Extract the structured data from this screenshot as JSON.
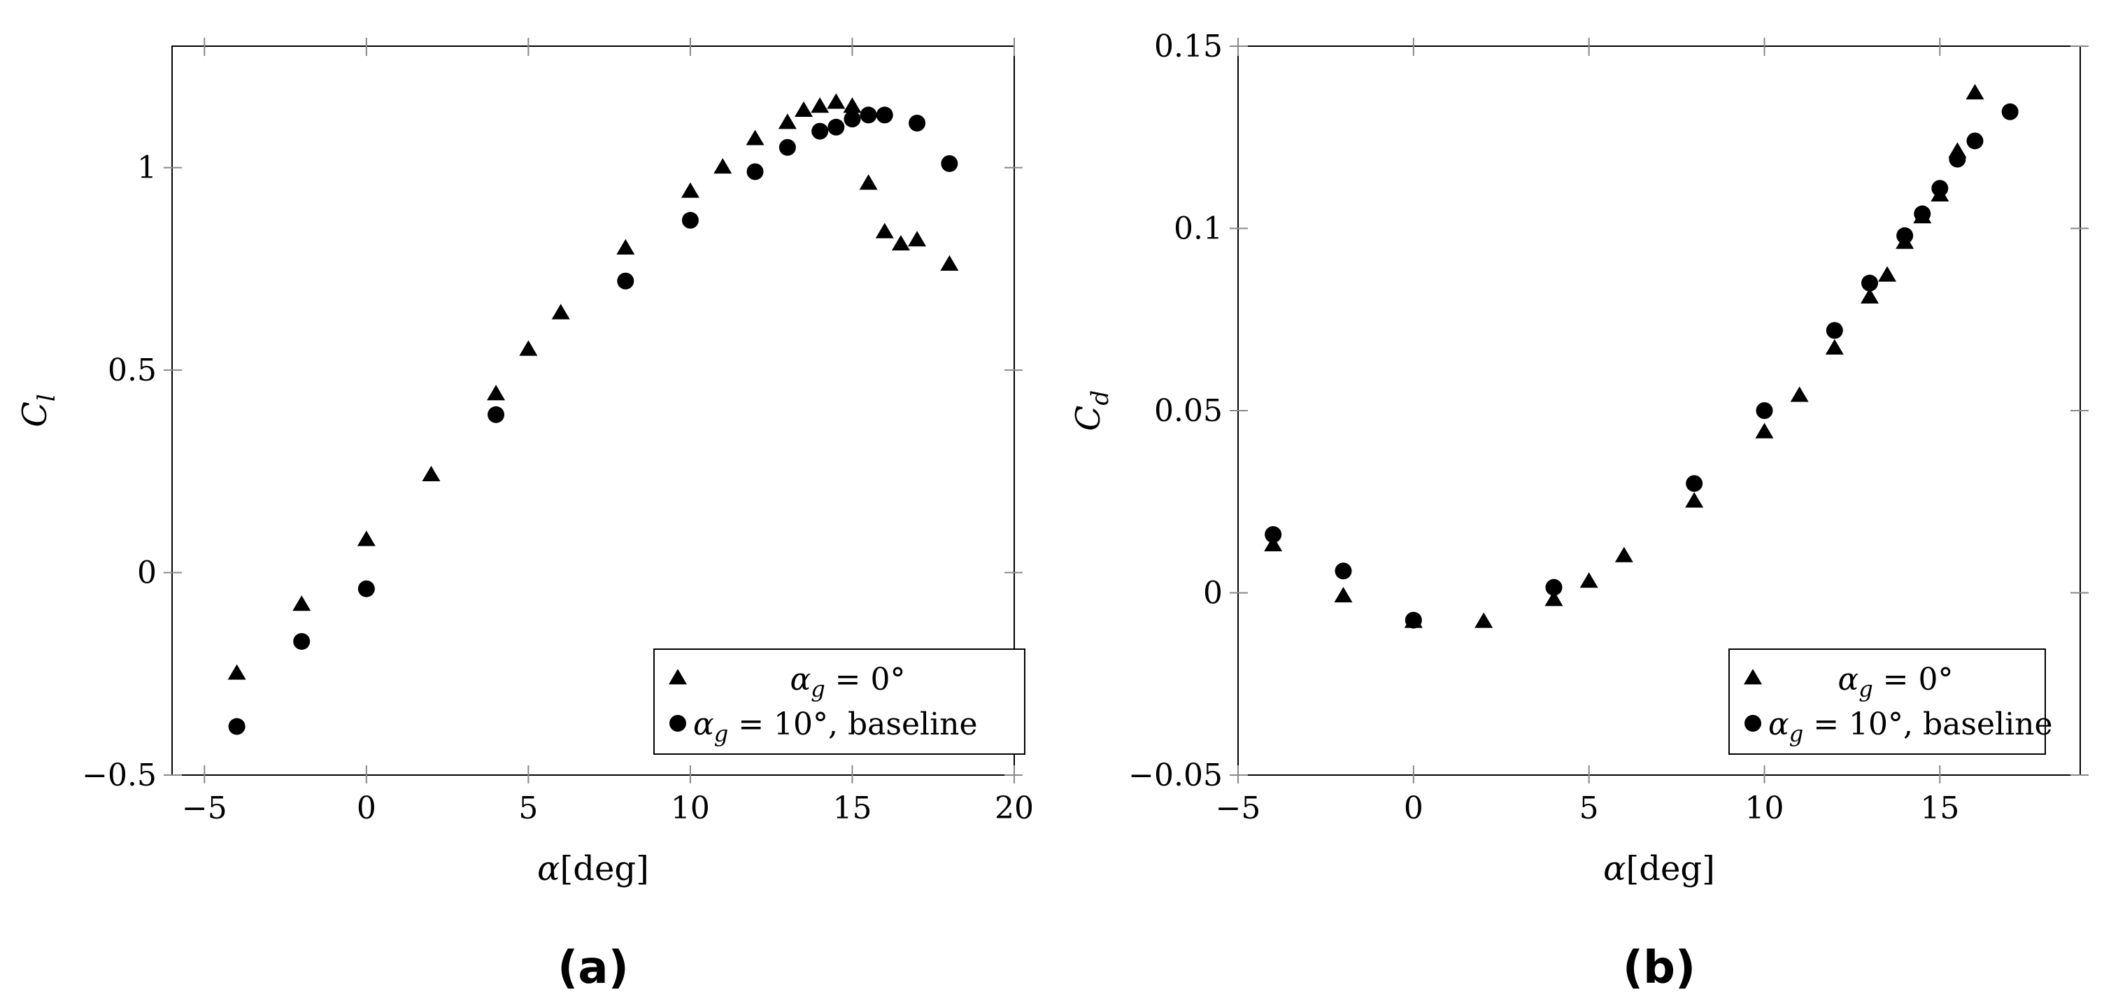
{
  "chart_data": [
    {
      "type": "scatter",
      "panel_label": "(a)",
      "xlabel_symbol": "α",
      "xlabel_unit": "[deg]",
      "ylabel_symbol": "C",
      "ylabel_sub": "l",
      "xlim": [
        -6,
        20
      ],
      "ylim": [
        -0.5,
        1.3
      ],
      "xticks": [
        -5,
        0,
        5,
        10,
        15,
        20
      ],
      "xtick_labels": [
        "−5",
        "0",
        "5",
        "10",
        "15",
        "20"
      ],
      "yticks": [
        -0.5,
        0,
        0.5,
        1
      ],
      "ytick_labels": [
        "−0.5",
        "0",
        "0.5",
        "1"
      ],
      "legend_position": "bottom-right",
      "series": [
        {
          "name": "α_g = 0°",
          "legend_var": "α",
          "legend_sub": "g",
          "legend_rest": " = 0°",
          "marker": "triangle",
          "x": [
            -4,
            -2,
            0,
            2,
            4,
            5,
            6,
            8,
            10,
            11,
            12,
            13,
            13.5,
            14,
            14.5,
            15,
            15.5,
            16,
            16.5,
            17,
            18
          ],
          "y": [
            -0.25,
            -0.08,
            0.08,
            0.24,
            0.44,
            0.55,
            0.64,
            0.8,
            0.94,
            1.0,
            1.07,
            1.11,
            1.14,
            1.15,
            1.16,
            1.15,
            0.96,
            0.84,
            0.81,
            0.82,
            0.76
          ]
        },
        {
          "name": "α_g = 10°, baseline",
          "legend_var": "α",
          "legend_sub": "g",
          "legend_rest": " = 10°, baseline",
          "marker": "circle",
          "x": [
            -4,
            -2,
            0,
            4,
            8,
            10,
            12,
            13,
            14,
            14.5,
            15,
            15.5,
            16,
            17,
            18
          ],
          "y": [
            -0.38,
            -0.17,
            -0.04,
            0.39,
            0.72,
            0.87,
            0.99,
            1.05,
            1.09,
            1.1,
            1.12,
            1.13,
            1.13,
            1.11,
            1.01
          ]
        }
      ]
    },
    {
      "type": "scatter",
      "panel_label": "(b)",
      "xlabel_symbol": "α",
      "xlabel_unit": "[deg]",
      "ylabel_symbol": "C",
      "ylabel_sub": "d",
      "xlim": [
        -5,
        19
      ],
      "ylim": [
        -0.05,
        0.15
      ],
      "xticks": [
        -5,
        0,
        5,
        10,
        15
      ],
      "xtick_labels": [
        "−5",
        "0",
        "5",
        "10",
        "15"
      ],
      "yticks": [
        -0.05,
        0,
        0.05,
        0.1,
        0.15
      ],
      "ytick_labels": [
        "−0.05",
        "0",
        "0.05",
        "0.1",
        "0.15"
      ],
      "legend_position": "bottom-right",
      "series": [
        {
          "name": "α_g = 0°",
          "legend_var": "α",
          "legend_sub": "g",
          "legend_rest": " = 0°",
          "marker": "triangle",
          "x": [
            -4,
            -2,
            0,
            2,
            4,
            5,
            6,
            8,
            10,
            11,
            12,
            13,
            13.5,
            14,
            14.5,
            15,
            15.5,
            16
          ],
          "y": [
            0.013,
            -0.001,
            -0.008,
            -0.008,
            -0.002,
            0.003,
            0.01,
            0.025,
            0.044,
            0.054,
            0.067,
            0.081,
            0.087,
            0.096,
            0.103,
            0.109,
            0.121,
            0.137
          ]
        },
        {
          "name": "α_g = 10°, baseline",
          "legend_var": "α",
          "legend_sub": "g",
          "legend_rest": " = 10°, baseline",
          "marker": "circle",
          "x": [
            -4,
            -2,
            0,
            4,
            8,
            10,
            12,
            13,
            14,
            14.5,
            15,
            15.5,
            16,
            17
          ],
          "y": [
            0.016,
            0.006,
            -0.0075,
            0.0015,
            0.03,
            0.05,
            0.072,
            0.085,
            0.098,
            0.104,
            0.111,
            0.119,
            0.124,
            0.132
          ]
        }
      ]
    }
  ]
}
